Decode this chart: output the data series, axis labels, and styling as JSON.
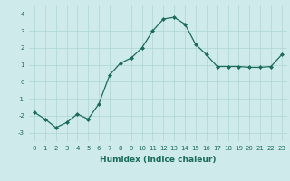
{
  "x": [
    0,
    1,
    2,
    3,
    4,
    5,
    6,
    7,
    8,
    9,
    10,
    11,
    12,
    13,
    14,
    15,
    16,
    17,
    18,
    19,
    20,
    21,
    22,
    23
  ],
  "y": [
    -1.8,
    -2.2,
    -2.7,
    -2.4,
    -1.9,
    -2.2,
    -1.3,
    0.4,
    1.1,
    1.4,
    2.0,
    3.0,
    3.7,
    3.8,
    3.4,
    2.2,
    1.6,
    0.9,
    0.9,
    0.9,
    0.85,
    0.85,
    0.9,
    1.6
  ],
  "line_color": "#1a6b5a",
  "marker": "D",
  "marker_size": 2,
  "bg_color": "#ceeaea",
  "grid_color": "#aed4d4",
  "xlabel": "Humidex (Indice chaleur)",
  "xlim": [
    -0.5,
    23.5
  ],
  "ylim": [
    -3.5,
    4.5
  ],
  "yticks": [
    -3,
    -2,
    -1,
    0,
    1,
    2,
    3,
    4
  ],
  "xticks": [
    0,
    1,
    2,
    3,
    4,
    5,
    6,
    7,
    8,
    9,
    10,
    11,
    12,
    13,
    14,
    15,
    16,
    17,
    18,
    19,
    20,
    21,
    22,
    23
  ],
  "tick_fontsize": 5.0,
  "xlabel_fontsize": 6.5
}
